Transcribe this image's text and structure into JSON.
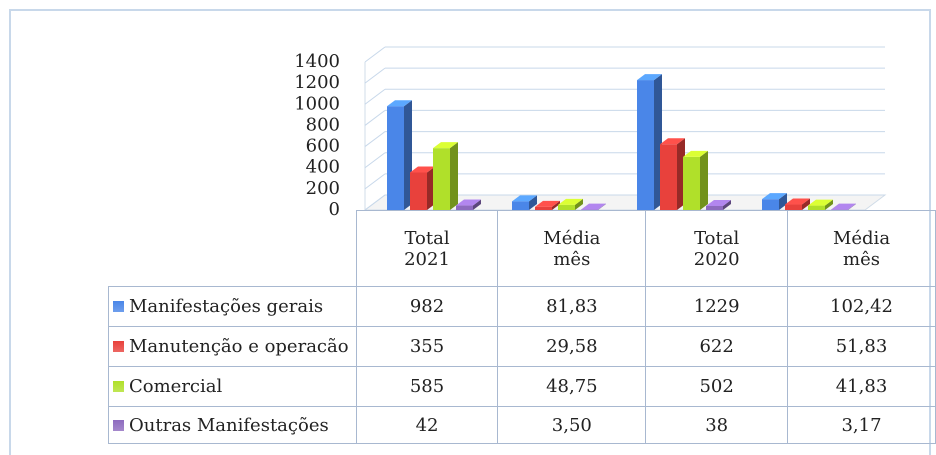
{
  "chart_data": {
    "type": "bar3d",
    "categories": [
      "Total 2021",
      "Média mês",
      "Total 2020",
      "Média mês"
    ],
    "ylim": [
      0,
      1400
    ],
    "yticks": [
      0,
      200,
      400,
      600,
      800,
      1000,
      1200,
      1400
    ],
    "grid": true,
    "series": [
      {
        "name": "Manifestações gerais",
        "color": "#4a86e8",
        "values": [
          982,
          81.83,
          1229,
          102.42
        ],
        "value_labels": [
          "982",
          "81,83",
          "1229",
          "102,42"
        ]
      },
      {
        "name": "Manutenção e operacão",
        "color": "#e8413c",
        "values": [
          355,
          29.58,
          622,
          51.83
        ],
        "value_labels": [
          "355",
          "29,58",
          "622",
          "51,83"
        ]
      },
      {
        "name": "Comercial",
        "color": "#b0e02a",
        "values": [
          585,
          48.75,
          502,
          41.83
        ],
        "value_labels": [
          "585",
          "48,75",
          "502",
          "41,83"
        ]
      },
      {
        "name": "Outras Manifestações",
        "color": "#8e6bbf",
        "values": [
          42,
          3.5,
          38,
          3.17
        ],
        "value_labels": [
          "42",
          "3,50",
          "38",
          "3,17"
        ]
      }
    ]
  }
}
